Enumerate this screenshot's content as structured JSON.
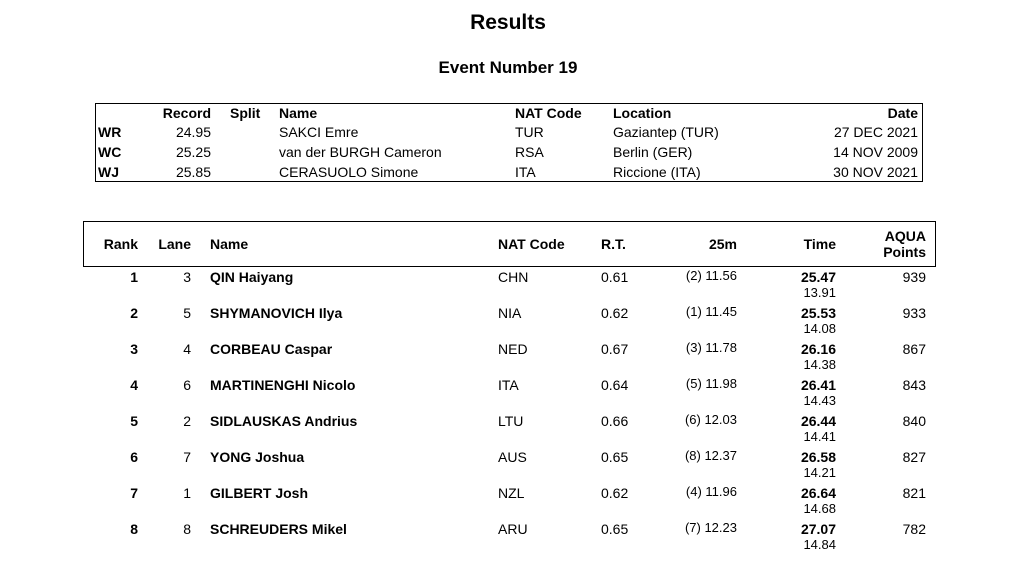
{
  "header": {
    "title": "Results",
    "subtitle": "Event Number 19"
  },
  "records": {
    "columns": [
      "Record",
      "Split",
      "Name",
      "NAT Code",
      "Location",
      "Date"
    ],
    "rows": [
      {
        "code": "WR",
        "record": "24.95",
        "name": "SAKCI Emre",
        "nat": "TUR",
        "location": "Gaziantep (TUR)",
        "date": "27 DEC 2021"
      },
      {
        "code": "WC",
        "record": "25.25",
        "name": "van der BURGH Cameron",
        "nat": "RSA",
        "location": "Berlin (GER)",
        "date": "14 NOV 2009"
      },
      {
        "code": "WJ",
        "record": "25.85",
        "name": "CERASUOLO Simone",
        "nat": "ITA",
        "location": "Riccione (ITA)",
        "date": "30 NOV 2021"
      }
    ]
  },
  "results": {
    "columns": [
      "Rank",
      "Lane",
      "Name",
      "NAT Code",
      "R.T.",
      "25m",
      "Time",
      "AQUA Points"
    ],
    "rows": [
      {
        "rank": "1",
        "lane": "3",
        "name": "QIN Haiyang",
        "nat": "CHN",
        "rt": "0.61",
        "split25": "(2) 11.56",
        "time": "25.47",
        "split2": "13.91",
        "points": "939"
      },
      {
        "rank": "2",
        "lane": "5",
        "name": "SHYMANOVICH Ilya",
        "nat": "NIA",
        "rt": "0.62",
        "split25": "(1) 11.45",
        "time": "25.53",
        "split2": "14.08",
        "points": "933"
      },
      {
        "rank": "3",
        "lane": "4",
        "name": "CORBEAU Caspar",
        "nat": "NED",
        "rt": "0.67",
        "split25": "(3) 11.78",
        "time": "26.16",
        "split2": "14.38",
        "points": "867"
      },
      {
        "rank": "4",
        "lane": "6",
        "name": "MARTINENGHI Nicolo",
        "nat": "ITA",
        "rt": "0.64",
        "split25": "(5) 11.98",
        "time": "26.41",
        "split2": "14.43",
        "points": "843"
      },
      {
        "rank": "5",
        "lane": "2",
        "name": "SIDLAUSKAS Andrius",
        "nat": "LTU",
        "rt": "0.66",
        "split25": "(6) 12.03",
        "time": "26.44",
        "split2": "14.41",
        "points": "840"
      },
      {
        "rank": "6",
        "lane": "7",
        "name": "YONG Joshua",
        "nat": "AUS",
        "rt": "0.65",
        "split25": "(8) 12.37",
        "time": "26.58",
        "split2": "14.21",
        "points": "827"
      },
      {
        "rank": "7",
        "lane": "1",
        "name": "GILBERT Josh",
        "nat": "NZL",
        "rt": "0.62",
        "split25": "(4) 11.96",
        "time": "26.64",
        "split2": "14.68",
        "points": "821"
      },
      {
        "rank": "8",
        "lane": "8",
        "name": "SCHREUDERS Mikel",
        "nat": "ARU",
        "rt": "0.65",
        "split25": "(7) 12.23",
        "time": "27.07",
        "split2": "14.84",
        "points": "782"
      }
    ]
  }
}
